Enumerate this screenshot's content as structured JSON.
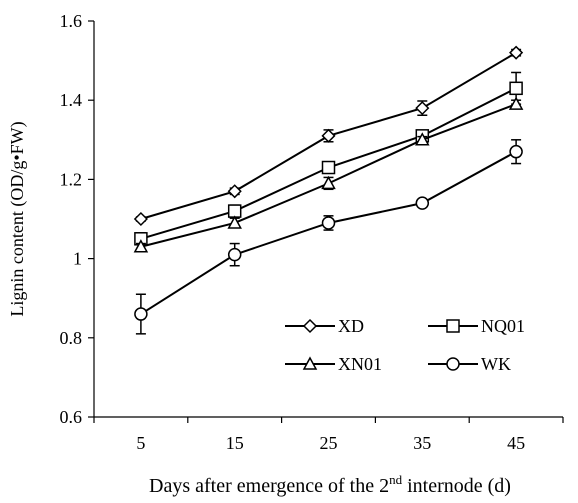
{
  "chart_data": {
    "type": "line",
    "x": [
      5,
      15,
      25,
      35,
      45
    ],
    "xticks": [
      "5",
      "15",
      "25",
      "35",
      "45"
    ],
    "yticks": [
      "0.6",
      "0.8",
      "1",
      "1.2",
      "1.4",
      "1.6"
    ],
    "ylim": [
      0.6,
      1.6
    ],
    "grid": false,
    "legend_position": "lower-right",
    "ylabel": "Lignin content (OD/g•FW)",
    "xlabel": {
      "before": "Days after emergence of the 2",
      "sup": "nd",
      "after": " internode (d)"
    },
    "series": [
      {
        "name": "XD",
        "marker": "diamond",
        "values": [
          1.1,
          1.17,
          1.31,
          1.38,
          1.52
        ],
        "errors": [
          0.005,
          0.008,
          0.015,
          0.018,
          0.008
        ]
      },
      {
        "name": "NQ01",
        "marker": "square",
        "values": [
          1.05,
          1.12,
          1.23,
          1.31,
          1.43
        ],
        "errors": [
          0.015,
          0.015,
          0.008,
          0.008,
          0.04
        ]
      },
      {
        "name": "XN01",
        "marker": "triangle",
        "values": [
          1.03,
          1.09,
          1.19,
          1.3,
          1.39
        ],
        "errors": [
          0.008,
          0.012,
          0.015,
          0.008,
          0.01
        ]
      },
      {
        "name": "WK",
        "marker": "circle",
        "values": [
          0.86,
          1.01,
          1.09,
          1.14,
          1.27
        ],
        "errors": [
          0.05,
          0.028,
          0.018,
          0.005,
          0.03
        ]
      }
    ],
    "colors": {
      "line": "#000000",
      "marker_fill": "#ffffff"
    }
  }
}
